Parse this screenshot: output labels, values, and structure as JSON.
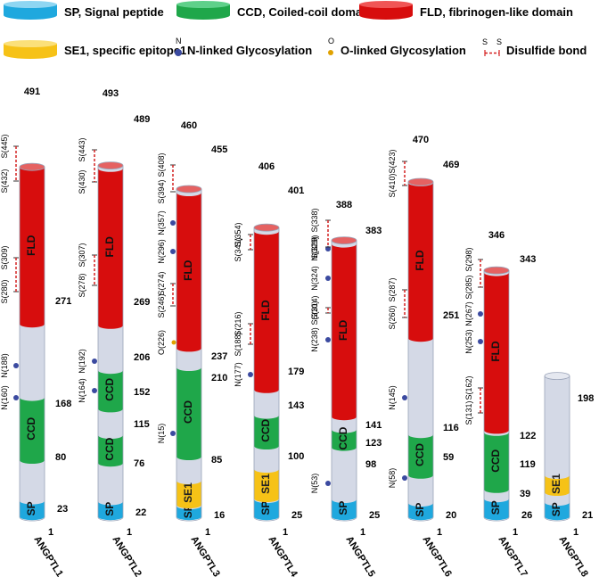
{
  "colors": {
    "sp": "#1fa8de",
    "ccd": "#1fa74a",
    "fld": "#d70d0d",
    "se1": "#f6c217",
    "tube": "#d4d9e6",
    "tube_stroke": "#9aa3b8",
    "nglyco": "#3b4aa0",
    "oglyco": "#e0a100",
    "disulfide": "#d42020"
  },
  "legend": {
    "sp": "SP, Signal peptide",
    "ccd": "CCD, Coiled-coil domain",
    "fld": "FLD, fibrinogen-like domain",
    "se1": "SE1, specific epitope1",
    "n_glyco": "N-linked Glycosylation",
    "o_glyco": "O-linked Glycosylation",
    "disulfide": "Disulfide bond",
    "n_letter": "N",
    "o_letter": "O",
    "s_letter": "S"
  },
  "proteins": [
    {
      "name": "ANGPTL1",
      "length": 491,
      "domains": [
        {
          "type": "sp",
          "label": "SP",
          "start": 1,
          "end": 23
        },
        {
          "type": "ccd",
          "label": "CCD",
          "start": 80,
          "end": 168
        },
        {
          "type": "fld",
          "label": "FLD",
          "start": 271,
          "end": 491
        }
      ],
      "numbers": [
        "1",
        "23",
        "80",
        "168",
        "271",
        "491"
      ],
      "n_glyco": [
        "N(160)",
        "N(188)"
      ],
      "o_glyco": [],
      "disulfides": [
        [
          "S(280)",
          "S(309)"
        ],
        [
          "S(432)",
          "S(445)"
        ]
      ]
    },
    {
      "name": "ANGPTL2",
      "length": 493,
      "domains": [
        {
          "type": "sp",
          "label": "SP",
          "start": 1,
          "end": 22
        },
        {
          "type": "ccd",
          "label": "CCD",
          "start": 76,
          "end": 115
        },
        {
          "type": "ccd",
          "label": "CCD",
          "start": 152,
          "end": 206
        },
        {
          "type": "fld",
          "label": "FLD",
          "start": 269,
          "end": 489
        }
      ],
      "numbers": [
        "1",
        "22",
        "76",
        "115",
        "152",
        "206",
        "269",
        "489",
        "493"
      ],
      "n_glyco": [
        "N(164)",
        "N(192)"
      ],
      "o_glyco": [],
      "disulfides": [
        [
          "S(278)",
          "S(307)"
        ],
        [
          "S(430)",
          "S(443)"
        ]
      ]
    },
    {
      "name": "ANGPTL3",
      "length": 460,
      "domains": [
        {
          "type": "sp",
          "label": "SP",
          "start": 1,
          "end": 16
        },
        {
          "type": "se1",
          "label": "SE1",
          "start": 30,
          "end": 70
        },
        {
          "type": "ccd",
          "label": "CCD",
          "start": 85,
          "end": 210
        },
        {
          "type": "fld",
          "label": "FLD",
          "start": 237,
          "end": 455
        }
      ],
      "numbers": [
        "1",
        "16",
        "85",
        "210",
        "237",
        "455",
        "460"
      ],
      "n_glyco": [
        "N(15)",
        "N(296)",
        "N(357)"
      ],
      "o_glyco": [
        "O(226)"
      ],
      "disulfides": [
        [
          "S(246)",
          "S(274)"
        ],
        [
          "S(394)",
          "S(408)"
        ]
      ]
    },
    {
      "name": "ANGPTL4",
      "length": 406,
      "domains": [
        {
          "type": "sp",
          "label": "SP",
          "start": 1,
          "end": 25
        },
        {
          "type": "se1",
          "label": "SE1",
          "start": 40,
          "end": 80
        },
        {
          "type": "ccd",
          "label": "CCD",
          "start": 100,
          "end": 143
        },
        {
          "type": "fld",
          "label": "FLD",
          "start": 179,
          "end": 401
        }
      ],
      "numbers": [
        "1",
        "25",
        "100",
        "143",
        "179",
        "401",
        "406"
      ],
      "n_glyco": [
        "N(177)"
      ],
      "o_glyco": [],
      "disulfides": [
        [
          "S(188)",
          "S(216)"
        ],
        [
          "S(341)",
          "S(354)"
        ]
      ]
    },
    {
      "name": "ANGPTL5",
      "length": 388,
      "domains": [
        {
          "type": "sp",
          "label": "SP",
          "start": 1,
          "end": 25
        },
        {
          "type": "ccd",
          "label": "CCD",
          "start": 98,
          "end": 123
        },
        {
          "type": "fld",
          "label": "FLD",
          "start": 141,
          "end": 383
        }
      ],
      "numbers": [
        "1",
        "25",
        "98",
        "123",
        "141",
        "383",
        "388"
      ],
      "n_glyco": [
        "N(53)",
        "N(238)",
        "N(324)",
        "N(329)"
      ],
      "o_glyco": [],
      "disulfides": [
        [
          "S(310)",
          "S(314)"
        ],
        [
          "S(329)",
          "S(338)"
        ]
      ]
    },
    {
      "name": "ANGPTL6",
      "length": 470,
      "domains": [
        {
          "type": "sp",
          "label": "SP",
          "start": 1,
          "end": 20
        },
        {
          "type": "ccd",
          "label": "CCD",
          "start": 59,
          "end": 116
        },
        {
          "type": "fld",
          "label": "FLD",
          "start": 251,
          "end": 469
        }
      ],
      "numbers": [
        "1",
        "20",
        "59",
        "116",
        "251",
        "469",
        "470"
      ],
      "n_glyco": [
        "N(58)",
        "N(145)"
      ],
      "o_glyco": [],
      "disulfides": [
        [
          "S(260)",
          "S(287)"
        ],
        [
          "S(410)",
          "S(423)"
        ]
      ]
    },
    {
      "name": "ANGPTL7",
      "length": 346,
      "domains": [
        {
          "type": "sp",
          "label": "SP",
          "start": 1,
          "end": 26
        },
        {
          "type": "ccd",
          "label": "CCD",
          "start": 39,
          "end": 119
        },
        {
          "type": "fld",
          "label": "FLD",
          "start": 122,
          "end": 343
        }
      ],
      "numbers": [
        "1",
        "26",
        "39",
        "119",
        "122",
        "343",
        "346"
      ],
      "n_glyco": [
        "N(253)",
        "N(267)"
      ],
      "o_glyco": [],
      "disulfides": [
        [
          "S(131)",
          "S(162)"
        ],
        [
          "S(285)",
          "S(298)"
        ]
      ]
    },
    {
      "name": "ANGPTL8",
      "length": 198,
      "domains": [
        {
          "type": "sp",
          "label": "SP",
          "start": 1,
          "end": 21
        },
        {
          "type": "se1",
          "label": "SE1",
          "start": 22,
          "end": 45
        }
      ],
      "numbers": [
        "1",
        "21",
        "198"
      ],
      "n_glyco": [],
      "o_glyco": [],
      "disulfides": []
    }
  ]
}
